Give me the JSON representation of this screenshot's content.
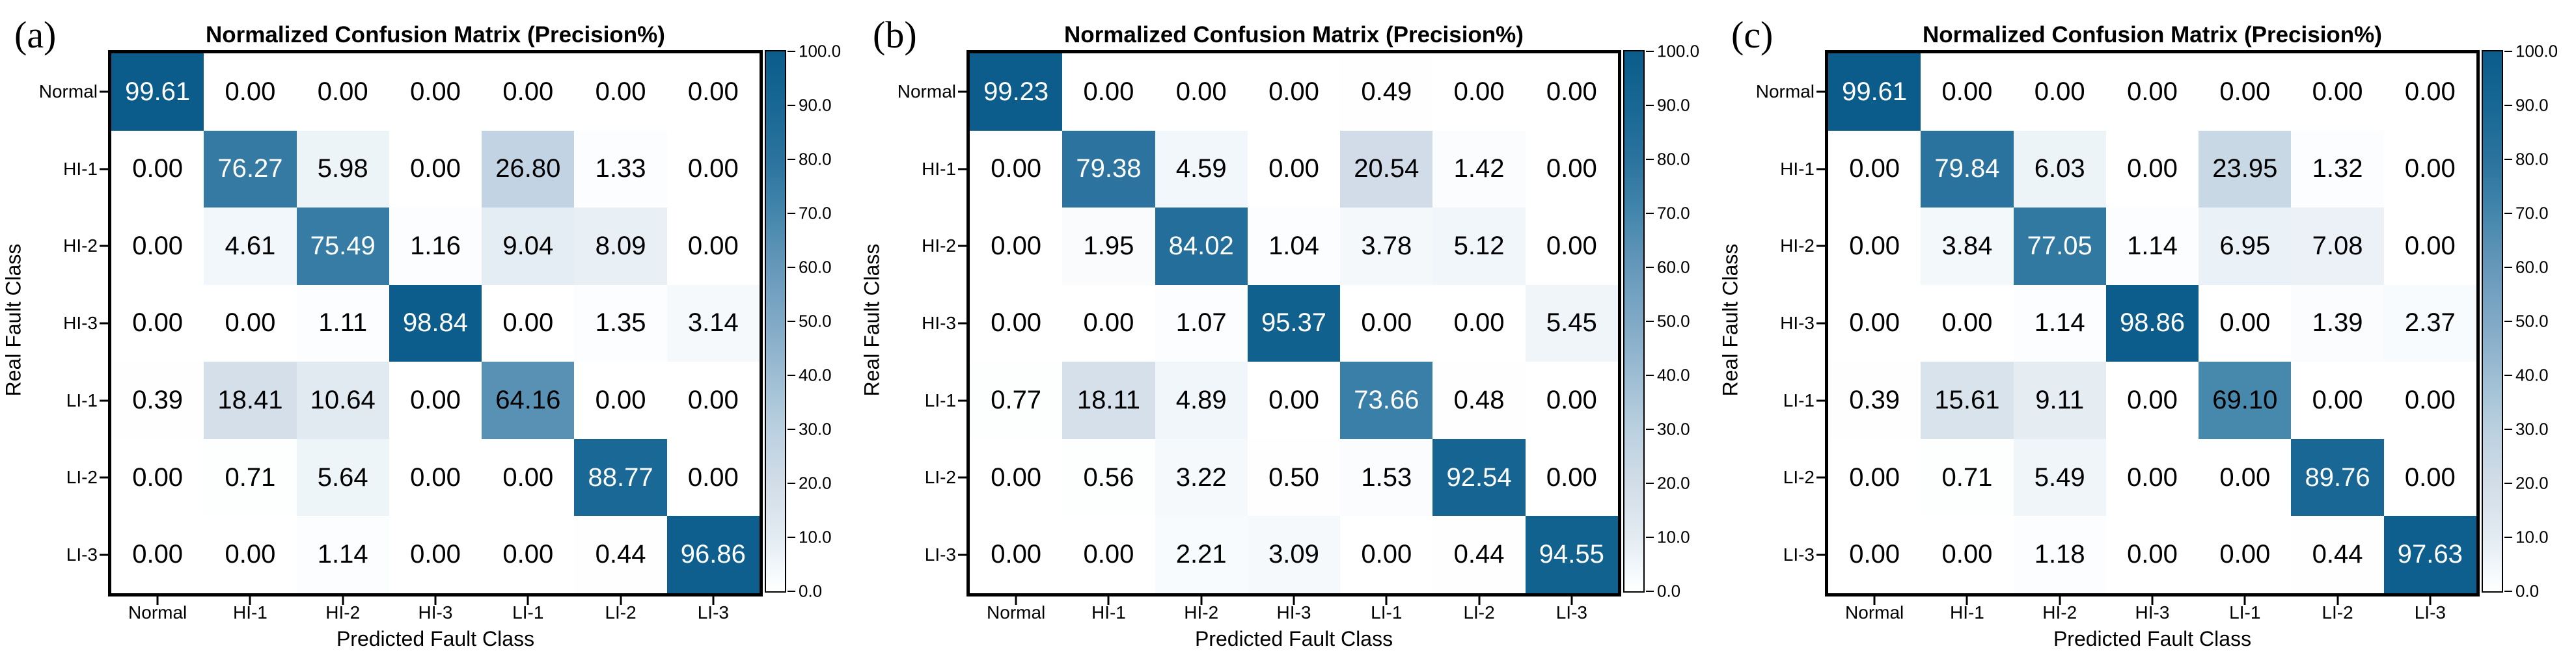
{
  "style": {
    "background": "#ffffff",
    "cell_text_dark": "#000000",
    "cell_text_light": "#ffffff",
    "text_threshold": 70,
    "axis_border_color": "#000000",
    "colormap_stops": [
      [
        0,
        "#ffffff"
      ],
      [
        5,
        "#f0f6fa"
      ],
      [
        10,
        "#e3ebf2"
      ],
      [
        20,
        "#d2dde8"
      ],
      [
        30,
        "#bad0e0"
      ],
      [
        40,
        "#9dbdd3"
      ],
      [
        50,
        "#80a9c6"
      ],
      [
        60,
        "#6698ba"
      ],
      [
        70,
        "#4486ac"
      ],
      [
        80,
        "#2a739e"
      ],
      [
        90,
        "#186794"
      ],
      [
        100,
        "#0b5c8b"
      ]
    ]
  },
  "chart_data": [
    {
      "type": "heatmap",
      "panel_label": "(a)",
      "title": "Normalized Confusion Matrix (Precision%)",
      "xlabel": "Predicted Fault Class",
      "ylabel": "Real Fault Class",
      "x_categories": [
        "Normal",
        "HI-1",
        "HI-2",
        "HI-3",
        "LI-1",
        "LI-2",
        "LI-3"
      ],
      "y_categories": [
        "Normal",
        "HI-1",
        "HI-2",
        "HI-3",
        "LI-1",
        "LI-2",
        "LI-3"
      ],
      "values": [
        [
          99.61,
          0.0,
          0.0,
          0.0,
          0.0,
          0.0,
          0.0
        ],
        [
          0.0,
          76.27,
          5.98,
          0.0,
          26.8,
          1.33,
          0.0
        ],
        [
          0.0,
          4.61,
          75.49,
          1.16,
          9.04,
          8.09,
          0.0
        ],
        [
          0.0,
          0.0,
          1.11,
          98.84,
          0.0,
          1.35,
          3.14
        ],
        [
          0.39,
          18.41,
          10.64,
          0.0,
          64.16,
          0.0,
          0.0
        ],
        [
          0.0,
          0.71,
          5.64,
          0.0,
          0.0,
          88.77,
          0.0
        ],
        [
          0.0,
          0.0,
          1.14,
          0.0,
          0.0,
          0.44,
          96.86
        ]
      ],
      "colorbar": {
        "min": 0,
        "max": 100,
        "tick_labels": [
          "0.0",
          "10.0",
          "20.0",
          "30.0",
          "40.0",
          "50.0",
          "60.0",
          "70.0",
          "80.0",
          "90.0",
          "100.0"
        ]
      }
    },
    {
      "type": "heatmap",
      "panel_label": "(b)",
      "title": "Normalized Confusion Matrix (Precision%)",
      "xlabel": "Predicted Fault Class",
      "ylabel": "Real Fault Class",
      "x_categories": [
        "Normal",
        "HI-1",
        "HI-2",
        "HI-3",
        "LI-1",
        "LI-2",
        "LI-3"
      ],
      "y_categories": [
        "Normal",
        "HI-1",
        "HI-2",
        "HI-3",
        "LI-1",
        "LI-2",
        "LI-3"
      ],
      "values": [
        [
          99.23,
          0.0,
          0.0,
          0.0,
          0.49,
          0.0,
          0.0
        ],
        [
          0.0,
          79.38,
          4.59,
          0.0,
          20.54,
          1.42,
          0.0
        ],
        [
          0.0,
          1.95,
          84.02,
          1.04,
          3.78,
          5.12,
          0.0
        ],
        [
          0.0,
          0.0,
          1.07,
          95.37,
          0.0,
          0.0,
          5.45
        ],
        [
          0.77,
          18.11,
          4.89,
          0.0,
          73.66,
          0.48,
          0.0
        ],
        [
          0.0,
          0.56,
          3.22,
          0.5,
          1.53,
          92.54,
          0.0
        ],
        [
          0.0,
          0.0,
          2.21,
          3.09,
          0.0,
          0.44,
          94.55
        ]
      ],
      "colorbar": {
        "min": 0,
        "max": 100,
        "tick_labels": [
          "0.0",
          "10.0",
          "20.0",
          "30.0",
          "40.0",
          "50.0",
          "60.0",
          "70.0",
          "80.0",
          "90.0",
          "100.0"
        ]
      }
    },
    {
      "type": "heatmap",
      "panel_label": "(c)",
      "title": "Normalized Confusion Matrix (Precision%)",
      "xlabel": "Predicted Fault Class",
      "ylabel": "Real Fault Class",
      "x_categories": [
        "Normal",
        "HI-1",
        "HI-2",
        "HI-3",
        "LI-1",
        "LI-2",
        "LI-3"
      ],
      "y_categories": [
        "Normal",
        "HI-1",
        "HI-2",
        "HI-3",
        "LI-1",
        "LI-2",
        "LI-3"
      ],
      "values": [
        [
          99.61,
          0.0,
          0.0,
          0.0,
          0.0,
          0.0,
          0.0
        ],
        [
          0.0,
          79.84,
          6.03,
          0.0,
          23.95,
          1.32,
          0.0
        ],
        [
          0.0,
          3.84,
          77.05,
          1.14,
          6.95,
          7.08,
          0.0
        ],
        [
          0.0,
          0.0,
          1.14,
          98.86,
          0.0,
          1.39,
          2.37
        ],
        [
          0.39,
          15.61,
          9.11,
          0.0,
          69.1,
          0.0,
          0.0
        ],
        [
          0.0,
          0.71,
          5.49,
          0.0,
          0.0,
          89.76,
          0.0
        ],
        [
          0.0,
          0.0,
          1.18,
          0.0,
          0.0,
          0.44,
          97.63
        ]
      ],
      "colorbar": {
        "min": 0,
        "max": 100,
        "tick_labels": [
          "0.0",
          "10.0",
          "20.0",
          "30.0",
          "40.0",
          "50.0",
          "60.0",
          "70.0",
          "80.0",
          "90.0",
          "100.0"
        ]
      }
    }
  ]
}
